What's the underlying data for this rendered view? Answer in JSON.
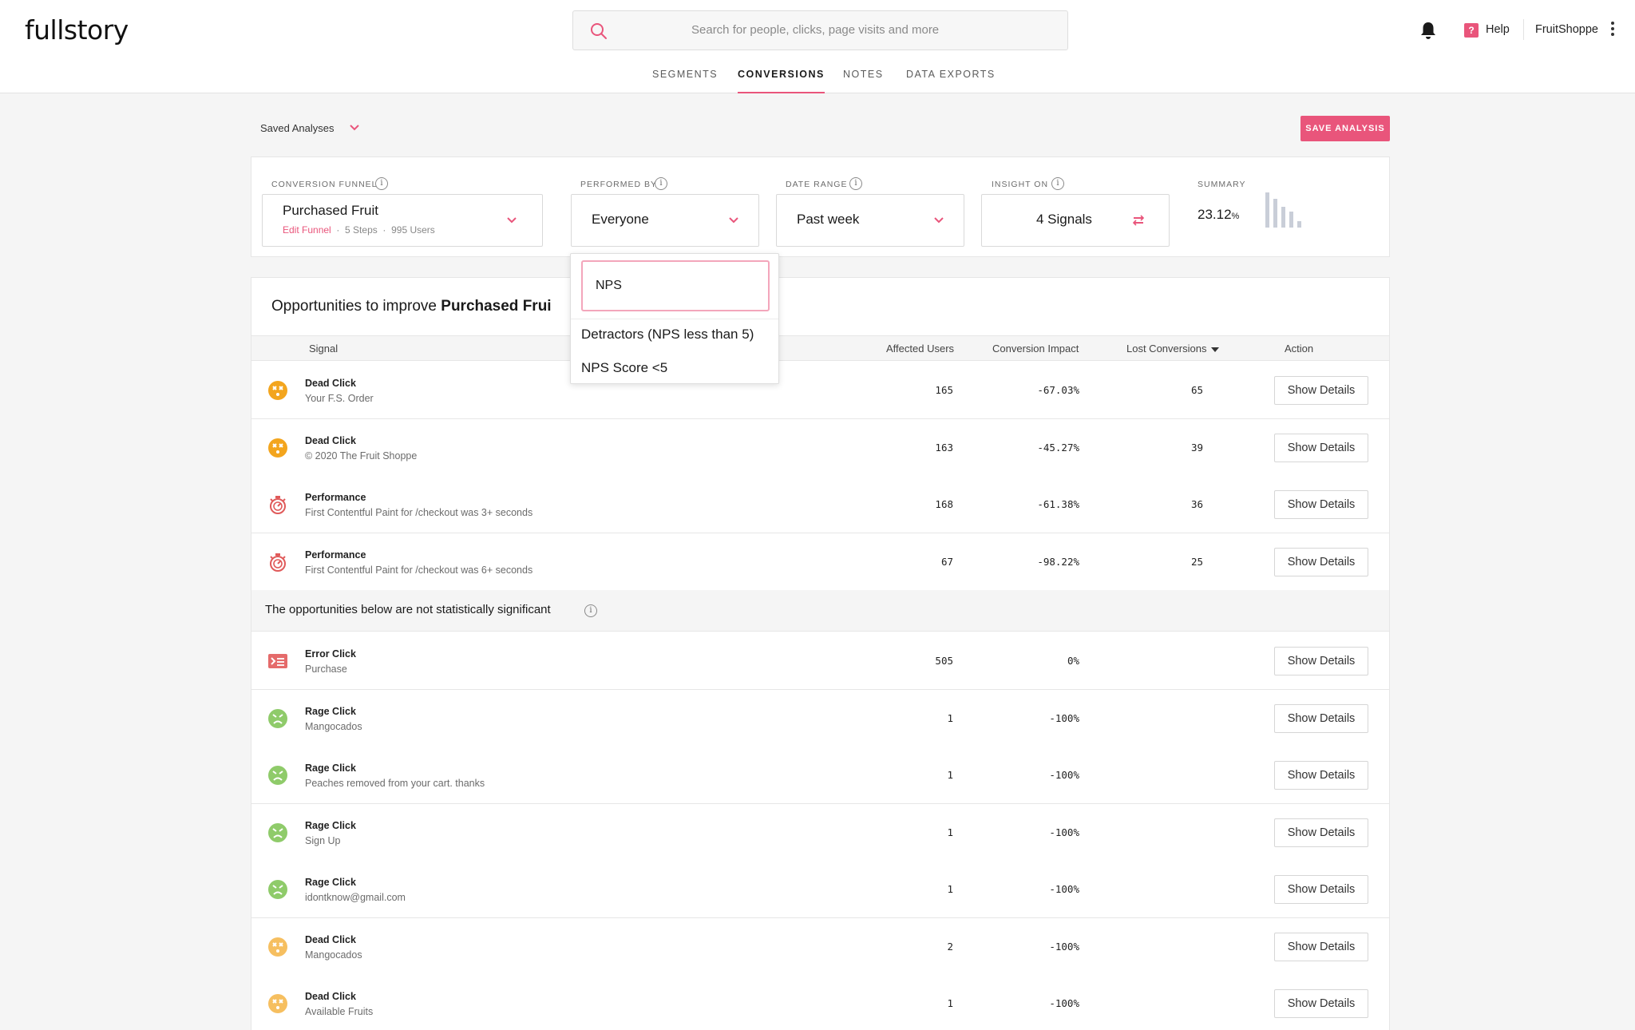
{
  "header": {
    "logo": "fullstory",
    "search_placeholder": "Search for people, clicks, page visits and more",
    "nav_tabs": [
      "SEGMENTS",
      "CONVERSIONS",
      "NOTES",
      "DATA EXPORTS"
    ],
    "active_tab": "CONVERSIONS",
    "help_label": "Help",
    "account_name": "FruitShoppe"
  },
  "toolbar": {
    "saved_analyses_label": "Saved Analyses",
    "save_analysis_label": "SAVE ANALYSIS"
  },
  "filters": {
    "conversion_funnel": {
      "label": "CONVERSION FUNNEL",
      "value": "Purchased Fruit",
      "edit_link": "Edit Funnel",
      "steps": "5 Steps",
      "users": "995 Users"
    },
    "performed_by": {
      "label": "PERFORMED BY",
      "value": "Everyone"
    },
    "date_range": {
      "label": "DATE RANGE",
      "value": "Past week"
    },
    "insight_on": {
      "label": "INSIGHT ON",
      "value": "4 Signals"
    },
    "summary": {
      "label": "SUMMARY",
      "value": "23.12",
      "unit": "%"
    }
  },
  "dropdown": {
    "search_value": "NPS",
    "options": [
      "Detractors (NPS less than 5)",
      "NPS Score <5"
    ]
  },
  "opportunities": {
    "title_prefix": "Opportunities to improve ",
    "title_bold": "Purchased Frui",
    "columns": {
      "signal": "Signal",
      "affected_users": "Affected Users",
      "conversion_impact": "Conversion Impact",
      "lost_conversions": "Lost Conversions",
      "action": "Action"
    },
    "significant_rows": [
      {
        "type": "Dead Click",
        "detail": "Your F.S. Order",
        "users": "165",
        "impact": "-67.03%",
        "lost": "65",
        "action": "Show Details",
        "icon": "dead-click-icon"
      },
      {
        "type": "Dead Click",
        "detail": "© 2020 The Fruit Shoppe",
        "users": "163",
        "impact": "-45.27%",
        "lost": "39",
        "action": "Show Details",
        "icon": "dead-click-icon"
      },
      {
        "type": "Performance",
        "detail": "First Contentful Paint for /checkout was 3+ seconds",
        "users": "168",
        "impact": "-61.38%",
        "lost": "36",
        "action": "Show Details",
        "icon": "performance-icon"
      },
      {
        "type": "Performance",
        "detail": "First Contentful Paint for /checkout was 6+ seconds",
        "users": "67",
        "impact": "-98.22%",
        "lost": "25",
        "action": "Show Details",
        "icon": "performance-icon"
      }
    ],
    "non_significant_banner": "The opportunities below are not statistically significant",
    "non_significant_rows": [
      {
        "type": "Error Click",
        "detail": "Purchase",
        "users": "505",
        "impact": "0%",
        "lost": "",
        "action": "Show Details",
        "icon": "error-click-icon"
      },
      {
        "type": "Rage Click",
        "detail": "Mangocados",
        "users": "1",
        "impact": "-100%",
        "lost": "",
        "action": "Show Details",
        "icon": "rage-click-icon"
      },
      {
        "type": "Rage Click",
        "detail": "Peaches removed from your cart. thanks",
        "users": "1",
        "impact": "-100%",
        "lost": "",
        "action": "Show Details",
        "icon": "rage-click-icon"
      },
      {
        "type": "Rage Click",
        "detail": "Sign Up",
        "users": "1",
        "impact": "-100%",
        "lost": "",
        "action": "Show Details",
        "icon": "rage-click-icon"
      },
      {
        "type": "Rage Click",
        "detail": "idontknow@gmail.com",
        "users": "1",
        "impact": "-100%",
        "lost": "",
        "action": "Show Details",
        "icon": "rage-click-icon"
      },
      {
        "type": "Dead Click",
        "detail": "Mangocados",
        "users": "2",
        "impact": "-100%",
        "lost": "",
        "action": "Show Details",
        "icon": "dead-click-icon"
      },
      {
        "type": "Dead Click",
        "detail": "Available Fruits",
        "users": "1",
        "impact": "-100%",
        "lost": "",
        "action": "Show Details",
        "icon": "dead-click-icon"
      }
    ]
  },
  "colors": {
    "accent": "#e9557b",
    "dead_click": "#f3a51e",
    "rage_click": "#8fcb6a",
    "performance": "#e05a5a",
    "error_click": "#e56b6b"
  }
}
